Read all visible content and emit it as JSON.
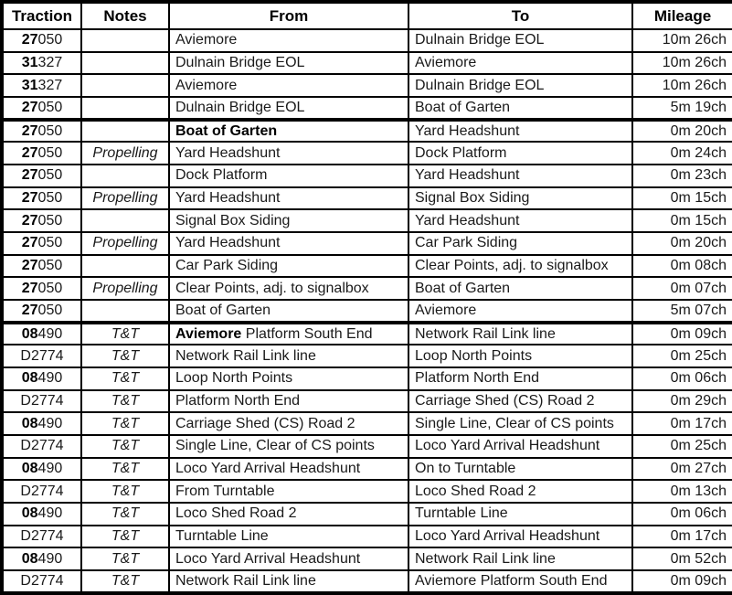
{
  "colors": {
    "border": "#000000",
    "text": "#1a1a1a",
    "background": "#ffffff"
  },
  "table": {
    "columns": [
      {
        "label": "Traction"
      },
      {
        "label": "Notes"
      },
      {
        "label": "From"
      },
      {
        "label": "To"
      },
      {
        "label": "Mileage"
      }
    ],
    "rows": [
      {
        "traction_bold": "27",
        "traction_rest": "050",
        "notes": "",
        "from_bold": "",
        "from_rest": "Aviemore",
        "to": "Dulnain Bridge EOL",
        "mileage": "10m 26ch",
        "section_end": false
      },
      {
        "traction_bold": "31",
        "traction_rest": "327",
        "notes": "",
        "from_bold": "",
        "from_rest": "Dulnain Bridge EOL",
        "to": "Aviemore",
        "mileage": "10m 26ch",
        "section_end": false
      },
      {
        "traction_bold": "31",
        "traction_rest": "327",
        "notes": "",
        "from_bold": "",
        "from_rest": "Aviemore",
        "to": "Dulnain Bridge EOL",
        "mileage": "10m 26ch",
        "section_end": false
      },
      {
        "traction_bold": "27",
        "traction_rest": "050",
        "notes": "",
        "from_bold": "",
        "from_rest": "Dulnain Bridge EOL",
        "to": "Boat of Garten",
        "mileage": "5m 19ch",
        "section_end": true
      },
      {
        "traction_bold": "27",
        "traction_rest": "050",
        "notes": "",
        "from_bold": "Boat of Garten",
        "from_rest": "",
        "to": "Yard Headshunt",
        "mileage": "0m 20ch",
        "section_end": false
      },
      {
        "traction_bold": "27",
        "traction_rest": "050",
        "notes": "Propelling",
        "from_bold": "",
        "from_rest": "Yard Headshunt",
        "to": "Dock Platform",
        "mileage": "0m 24ch",
        "section_end": false
      },
      {
        "traction_bold": "27",
        "traction_rest": "050",
        "notes": "",
        "from_bold": "",
        "from_rest": "Dock Platform",
        "to": "Yard Headshunt",
        "mileage": "0m 23ch",
        "section_end": false
      },
      {
        "traction_bold": "27",
        "traction_rest": "050",
        "notes": "Propelling",
        "from_bold": "",
        "from_rest": "Yard Headshunt",
        "to": "Signal Box Siding",
        "mileage": "0m 15ch",
        "section_end": false
      },
      {
        "traction_bold": "27",
        "traction_rest": "050",
        "notes": "",
        "from_bold": "",
        "from_rest": "Signal Box Siding",
        "to": "Yard Headshunt",
        "mileage": "0m 15ch",
        "section_end": false
      },
      {
        "traction_bold": "27",
        "traction_rest": "050",
        "notes": "Propelling",
        "from_bold": "",
        "from_rest": "Yard Headshunt",
        "to": "Car Park Siding",
        "mileage": "0m 20ch",
        "section_end": false
      },
      {
        "traction_bold": "27",
        "traction_rest": "050",
        "notes": "",
        "from_bold": "",
        "from_rest": "Car Park Siding",
        "to": "Clear Points, adj. to signalbox",
        "mileage": "0m 08ch",
        "section_end": false
      },
      {
        "traction_bold": "27",
        "traction_rest": "050",
        "notes": "Propelling",
        "from_bold": "",
        "from_rest": "Clear Points, adj. to signalbox",
        "to": "Boat of Garten",
        "mileage": "0m 07ch",
        "section_end": false
      },
      {
        "traction_bold": "27",
        "traction_rest": "050",
        "notes": "",
        "from_bold": "",
        "from_rest": "Boat of Garten",
        "to": "Aviemore",
        "mileage": "5m 07ch",
        "section_end": true
      },
      {
        "traction_bold": "08",
        "traction_rest": "490",
        "notes": "T&T",
        "from_bold": "Aviemore",
        "from_rest": " Platform South End",
        "to": "Network Rail Link line",
        "mileage": "0m 09ch",
        "section_end": false
      },
      {
        "traction_bold": "",
        "traction_rest": "D2774",
        "notes": "T&T",
        "from_bold": "",
        "from_rest": "Network Rail Link line",
        "to": "Loop North Points",
        "mileage": "0m 25ch",
        "section_end": false
      },
      {
        "traction_bold": "08",
        "traction_rest": "490",
        "notes": "T&T",
        "from_bold": "",
        "from_rest": "Loop North Points",
        "to": "Platform North End",
        "mileage": "0m 06ch",
        "section_end": false
      },
      {
        "traction_bold": "",
        "traction_rest": "D2774",
        "notes": "T&T",
        "from_bold": "",
        "from_rest": "Platform North End",
        "to": "Carriage Shed (CS) Road 2",
        "mileage": "0m 29ch",
        "section_end": false
      },
      {
        "traction_bold": "08",
        "traction_rest": "490",
        "notes": "T&T",
        "from_bold": "",
        "from_rest": "Carriage Shed (CS) Road 2",
        "to": "Single Line, Clear of CS points",
        "mileage": "0m 17ch",
        "section_end": false
      },
      {
        "traction_bold": "",
        "traction_rest": "D2774",
        "notes": "T&T",
        "from_bold": "",
        "from_rest": "Single Line, Clear of CS points",
        "to": "Loco Yard Arrival Headshunt",
        "mileage": "0m 25ch",
        "section_end": false
      },
      {
        "traction_bold": "08",
        "traction_rest": "490",
        "notes": "T&T",
        "from_bold": "",
        "from_rest": "Loco Yard Arrival Headshunt",
        "to": "On to Turntable",
        "mileage": "0m 27ch",
        "section_end": false
      },
      {
        "traction_bold": "",
        "traction_rest": "D2774",
        "notes": "T&T",
        "from_bold": "",
        "from_rest": "From Turntable",
        "to": "Loco Shed Road 2",
        "mileage": "0m 13ch",
        "section_end": false
      },
      {
        "traction_bold": "08",
        "traction_rest": "490",
        "notes": "T&T",
        "from_bold": "",
        "from_rest": "Loco Shed Road 2",
        "to": "Turntable Line",
        "mileage": "0m 06ch",
        "section_end": false
      },
      {
        "traction_bold": "",
        "traction_rest": "D2774",
        "notes": "T&T",
        "from_bold": "",
        "from_rest": "Turntable Line",
        "to": "Loco Yard Arrival Headshunt",
        "mileage": "0m 17ch",
        "section_end": false
      },
      {
        "traction_bold": "08",
        "traction_rest": "490",
        "notes": "T&T",
        "from_bold": "",
        "from_rest": "Loco Yard Arrival Headshunt",
        "to": "Network Rail Link line",
        "mileage": "0m 52ch",
        "section_end": false
      },
      {
        "traction_bold": "",
        "traction_rest": "D2774",
        "notes": "T&T",
        "from_bold": "",
        "from_rest": "Network Rail Link line",
        "to": "Aviemore Platform South End",
        "mileage": "0m 09ch",
        "section_end": false
      }
    ]
  }
}
